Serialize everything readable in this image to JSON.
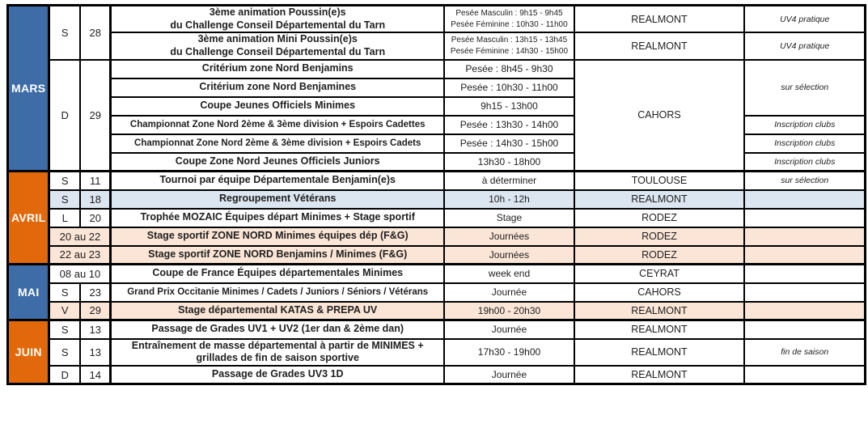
{
  "calendar": {
    "colors": {
      "month_blue": "#3D6CA6",
      "month_orange": "#E2690B",
      "row_light_blue": "#DCE6F1",
      "row_peach": "#FBE5D6",
      "border": "#000000"
    },
    "months": [
      {
        "name": "MARS",
        "color": "blue",
        "rows": [
          {
            "day": {
              "t": "S",
              "span": 2
            },
            "date": {
              "t": "28",
              "span": 2
            },
            "event": [
              "3ème animation Poussin(e)s",
              "du Challenge Conseil Départemental du Tarn"
            ],
            "time": [
              "Pesée Masculin : 9h15 - 9h45",
              "Pesée Féminine : 10h30 - 11h00"
            ],
            "location": {
              "t": "REALMONT"
            },
            "note": {
              "t": "UV4 pratique"
            }
          },
          {
            "event": [
              "3ème animation Mini Poussin(e)s",
              "du Challenge Conseil Départemental du Tarn"
            ],
            "time": [
              "Pesée Masculin : 13h15 - 13h45",
              "Pesée Féminine : 14h30 - 15h00"
            ],
            "location": {
              "t": "REALMONT"
            },
            "note": {
              "t": "UV4 pratique"
            }
          },
          {
            "day": {
              "t": "D",
              "span": 6
            },
            "date": {
              "t": "29",
              "span": 6
            },
            "event": [
              "Critérium zone Nord Benjamins"
            ],
            "time": [
              "Pesée : 8h45 - 9h30"
            ],
            "location": {
              "t": "CAHORS",
              "span": 6
            },
            "note": {
              "t": "sur sélection",
              "span": 3
            }
          },
          {
            "event": [
              "Critérium zone Nord Benjamines"
            ],
            "time": [
              "Pesée : 10h30 - 11h00"
            ]
          },
          {
            "event": [
              "Coupe Jeunes Officiels Minimes"
            ],
            "time": [
              "9h15 - 13h00"
            ]
          },
          {
            "event": [
              "Championnat Zone Nord 2ème & 3ème division + Espoirs Cadettes"
            ],
            "time": [
              "Pesée : 13h30 - 14h00"
            ],
            "note": {
              "t": "Inscription clubs"
            }
          },
          {
            "event": [
              "Championnat Zone Nord 2ème & 3ème division + Espoirs Cadets"
            ],
            "time": [
              "Pesée : 14h30 - 15h00"
            ],
            "note": {
              "t": "Inscription clubs"
            }
          },
          {
            "event": [
              "Coupe Zone Nord Jeunes Officiels Juniors"
            ],
            "time": [
              "13h30 - 18h00"
            ],
            "note": {
              "t": "Inscription clubs"
            }
          }
        ]
      },
      {
        "name": "AVRIL",
        "color": "orange",
        "rows": [
          {
            "day": {
              "t": "S"
            },
            "date": {
              "t": "11"
            },
            "event": [
              "Tournoi par équipe Départementale Benjamin(e)s"
            ],
            "time": [
              "à déterminer"
            ],
            "location": {
              "t": "TOULOUSE"
            },
            "note": {
              "t": "sur sélection"
            }
          },
          {
            "bg": "blue",
            "day": {
              "t": "S"
            },
            "date": {
              "t": "18"
            },
            "event": [
              "Regroupement Vétérans"
            ],
            "time": [
              "10h - 12h"
            ],
            "location": {
              "t": "REALMONT"
            },
            "note": {
              "t": ""
            }
          },
          {
            "day": {
              "t": "L"
            },
            "date": {
              "t": "20"
            },
            "event": [
              "Trophée MOZAIC Équipes départ Minimes + Stage sportif"
            ],
            "time": [
              "Stage"
            ],
            "location": {
              "t": "RODEZ"
            },
            "note": {
              "t": ""
            }
          },
          {
            "bg": "peach",
            "daydate": "20 au 22",
            "event": [
              "Stage sportif ZONE NORD Minimes équipes dép (F&G)"
            ],
            "time": [
              "Journées"
            ],
            "location": {
              "t": "RODEZ"
            },
            "note": {
              "t": ""
            }
          },
          {
            "bg": "peach",
            "daydate": "22 au 23",
            "event": [
              "Stage sportif ZONE NORD Benjamins / Minimes (F&G)"
            ],
            "time": [
              "Journées"
            ],
            "location": {
              "t": "RODEZ"
            },
            "note": {
              "t": ""
            }
          }
        ]
      },
      {
        "name": "MAI",
        "color": "blue",
        "rows": [
          {
            "daydate": "08 au 10",
            "event": [
              "Coupe de France Équipes départementales Minimes"
            ],
            "time": [
              "week end"
            ],
            "location": {
              "t": "CEYRAT"
            },
            "note": {
              "t": ""
            }
          },
          {
            "day": {
              "t": "S"
            },
            "date": {
              "t": "23"
            },
            "event": [
              "Grand Prix Occitanie Minimes / Cadets / Juniors / Séniors / Vétérans"
            ],
            "time": [
              "Journée"
            ],
            "location": {
              "t": "CAHORS"
            },
            "note": {
              "t": ""
            }
          },
          {
            "bg": "peach",
            "day": {
              "t": "V"
            },
            "date": {
              "t": "29"
            },
            "event": [
              "Stage départemental KATAS & PREPA UV"
            ],
            "time": [
              "19h00 - 20h30"
            ],
            "location": {
              "t": "REALMONT"
            },
            "note": {
              "t": ""
            }
          }
        ]
      },
      {
        "name": "JUIN",
        "color": "orange",
        "rows": [
          {
            "day": {
              "t": "S"
            },
            "date": {
              "t": "13"
            },
            "event": [
              "Passage de Grades UV1 + UV2 (1er dan & 2ème dan)"
            ],
            "time": [
              "Journée"
            ],
            "location": {
              "t": "REALMONT"
            },
            "note": {
              "t": ""
            }
          },
          {
            "day": {
              "t": "S"
            },
            "date": {
              "t": "13"
            },
            "event": [
              "Entraînement de masse départemental à partir de MINIMES +",
              "grillades de fin de saison sportive"
            ],
            "time": [
              "17h30 - 19h00"
            ],
            "location": {
              "t": "REALMONT"
            },
            "note": {
              "t": "fin de saison"
            }
          },
          {
            "day": {
              "t": "D"
            },
            "date": {
              "t": "14"
            },
            "event": [
              "Passage de Grades UV3 1D"
            ],
            "time": [
              "Journée"
            ],
            "location": {
              "t": "REALMONT"
            },
            "note": {
              "t": ""
            }
          }
        ]
      }
    ]
  }
}
